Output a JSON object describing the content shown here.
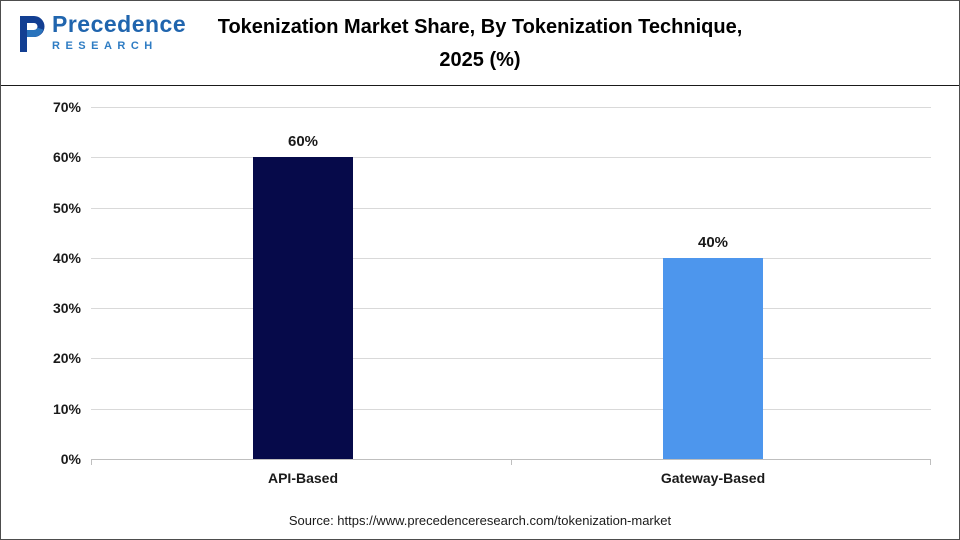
{
  "header": {
    "logo": {
      "name": "Precedence",
      "subtitle": "RESEARCH"
    },
    "title_line1": "Tokenization Market Share, By Tokenization Technique,",
    "title_line2": "2025 (%)"
  },
  "chart_data": {
    "type": "bar",
    "title": "Tokenization Market Share, By Tokenization Technique, 2025 (%)",
    "categories": [
      "API-Based",
      "Gateway-Based"
    ],
    "values": [
      60,
      40
    ],
    "value_labels": [
      "60%",
      "40%"
    ],
    "bar_colors": [
      "#060a4a",
      "#4d96ed"
    ],
    "ylim": [
      0,
      70
    ],
    "yticks": [
      "70%",
      "60%",
      "50%",
      "40%",
      "30%",
      "20%",
      "10%",
      "0%"
    ],
    "xlabel": "",
    "ylabel": "",
    "grid": true,
    "legend": "none"
  },
  "footer": {
    "source": "Source: https://www.precedenceresearch.com/tokenization-market"
  }
}
